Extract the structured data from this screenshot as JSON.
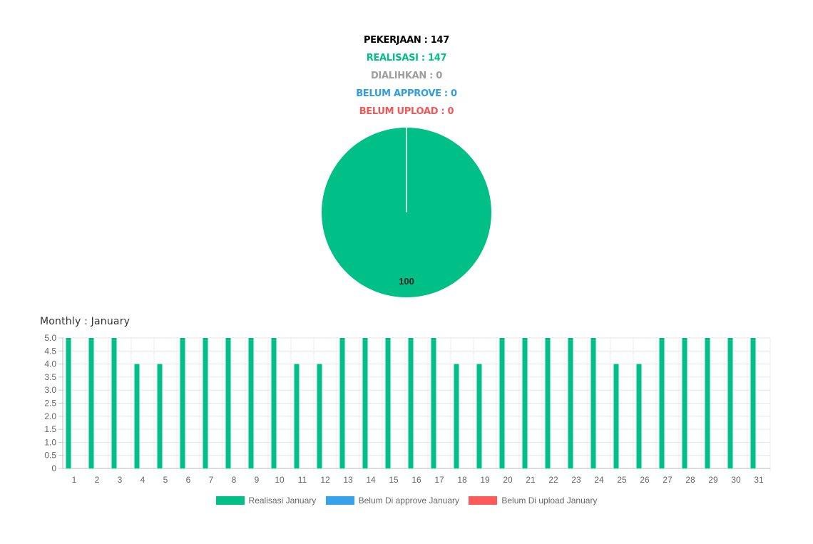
{
  "stats": [
    {
      "label": "PEKERJAAN : 147",
      "color": "#000000"
    },
    {
      "label": "REALISASI : 147",
      "color": "#00bf87"
    },
    {
      "label": "DIALIHKAN : 0",
      "color": "#9e9e9e"
    },
    {
      "label": "BELUM APPROVE : 0",
      "color": "#2f9de0"
    },
    {
      "label": "BELUM UPLOAD : 0",
      "color": "#f25757"
    }
  ],
  "monthly_title": "Monthly : January",
  "legend": [
    {
      "label": "Realisasi January",
      "color": "#00bf87"
    },
    {
      "label": "Belum Di approve January",
      "color": "#36a2eb"
    },
    {
      "label": "Belum Di upload January",
      "color": "#ff5a5a"
    }
  ],
  "chart_data": [
    {
      "type": "pie",
      "slices": [
        {
          "value": 100,
          "color": "#00bf87"
        }
      ],
      "data_labels": [
        "100"
      ]
    },
    {
      "type": "bar",
      "categories": [
        "1",
        "2",
        "3",
        "4",
        "5",
        "6",
        "7",
        "8",
        "9",
        "10",
        "11",
        "12",
        "13",
        "14",
        "15",
        "16",
        "17",
        "18",
        "19",
        "20",
        "21",
        "22",
        "23",
        "24",
        "25",
        "26",
        "27",
        "28",
        "29",
        "30",
        "31"
      ],
      "series": [
        {
          "name": "Realisasi January",
          "color": "#00bf87",
          "values": [
            5,
            5,
            5,
            4,
            4,
            5,
            5,
            5,
            5,
            5,
            4,
            4,
            5,
            5,
            5,
            5,
            5,
            4,
            4,
            5,
            5,
            5,
            5,
            5,
            4,
            4,
            5,
            5,
            5,
            5,
            5
          ]
        },
        {
          "name": "Belum Di approve January",
          "color": "#36a2eb",
          "values": [
            0,
            0,
            0,
            0,
            0,
            0,
            0,
            0,
            0,
            0,
            0,
            0,
            0,
            0,
            0,
            0,
            0,
            0,
            0,
            0,
            0,
            0,
            0,
            0,
            0,
            0,
            0,
            0,
            0,
            0,
            0
          ]
        },
        {
          "name": "Belum Di upload January",
          "color": "#ff5a5a",
          "values": [
            0,
            0,
            0,
            0,
            0,
            0,
            0,
            0,
            0,
            0,
            0,
            0,
            0,
            0,
            0,
            0,
            0,
            0,
            0,
            0,
            0,
            0,
            0,
            0,
            0,
            0,
            0,
            0,
            0,
            0,
            0
          ]
        }
      ],
      "yticks": [
        "0",
        "0.5",
        "1.0",
        "1.5",
        "2.0",
        "2.5",
        "3.0",
        "3.5",
        "4.0",
        "4.5",
        "5.0"
      ],
      "ylim": [
        0,
        5
      ],
      "grid": true,
      "legend_position": "bottom"
    }
  ]
}
